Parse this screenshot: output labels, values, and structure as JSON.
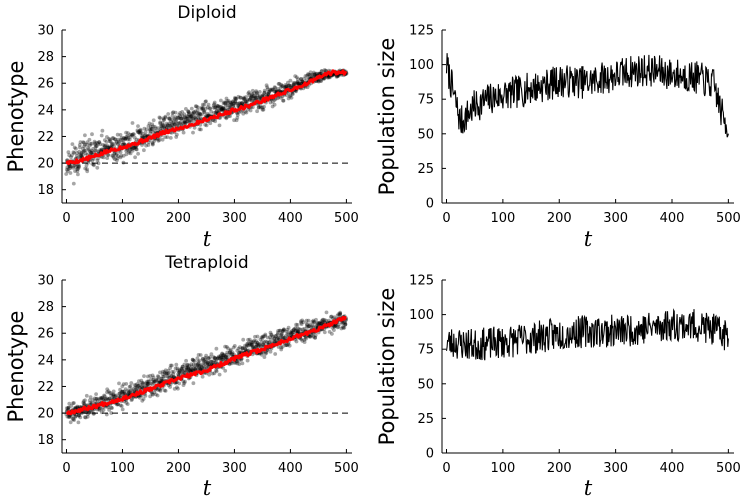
{
  "figure": {
    "background": "#ffffff"
  },
  "chart_data": [
    {
      "id": "diploid-phenotype",
      "type": "scatter",
      "title": "Diploid",
      "xlabel": "t",
      "ylabel": "Phenotype",
      "xlim": [
        -8,
        510
      ],
      "ylim": [
        17,
        30
      ],
      "xticks": [
        0,
        100,
        200,
        300,
        400,
        500
      ],
      "yticks": [
        18,
        20,
        22,
        24,
        26,
        28,
        30
      ],
      "grid": false,
      "points_color": "#000000",
      "points_opacity": 0.35,
      "reference_line": {
        "y": 20,
        "style": "dashed",
        "color": "#000000"
      },
      "scatter_spread": [
        {
          "t": 0,
          "low": 18.3,
          "high": 21.7
        },
        {
          "t": 50,
          "low": 19.2,
          "high": 22.3
        },
        {
          "t": 100,
          "low": 20.0,
          "high": 22.6
        },
        {
          "t": 200,
          "low": 21.8,
          "high": 24.3
        },
        {
          "t": 300,
          "low": 23.2,
          "high": 25.2
        },
        {
          "t": 400,
          "low": 24.8,
          "high": 26.4
        },
        {
          "t": 460,
          "low": 26.2,
          "high": 27.1
        },
        {
          "t": 500,
          "low": 26.6,
          "high": 27.0
        }
      ],
      "series": [
        {
          "color": "#ff0000",
          "x": [
            0,
            25,
            50,
            75,
            100,
            125,
            150,
            175,
            200,
            225,
            250,
            275,
            300,
            325,
            350,
            375,
            400,
            425,
            450,
            465,
            475,
            500
          ],
          "y": [
            20.0,
            20.2,
            20.5,
            20.9,
            21.2,
            21.5,
            21.9,
            22.3,
            22.6,
            22.9,
            23.3,
            23.6,
            24.0,
            24.3,
            24.7,
            25.1,
            25.5,
            25.9,
            26.4,
            26.7,
            26.8,
            26.8
          ]
        }
      ]
    },
    {
      "id": "diploid-population",
      "type": "line",
      "title": "",
      "xlabel": "t",
      "ylabel": "Population size",
      "xlim": [
        -8,
        510
      ],
      "ylim": [
        0,
        125
      ],
      "xticks": [
        0,
        100,
        200,
        300,
        400,
        500
      ],
      "yticks": [
        0,
        25,
        50,
        75,
        100,
        125
      ],
      "grid": false,
      "series": [
        {
          "color": "#000000",
          "x": [
            0,
            25,
            50,
            75,
            100,
            125,
            150,
            175,
            200,
            225,
            250,
            275,
            300,
            325,
            350,
            375,
            400,
            425,
            450,
            475,
            490,
            500
          ],
          "y": [
            100,
            58,
            70,
            75,
            78,
            80,
            83,
            85,
            88,
            88,
            87,
            90,
            92,
            95,
            96,
            95,
            93,
            92,
            90,
            85,
            62,
            55
          ],
          "noise_amplitude": 12,
          "noise_seed": 7
        }
      ]
    },
    {
      "id": "tetraploid-phenotype",
      "type": "scatter",
      "title": "Tetraploid",
      "xlabel": "t",
      "ylabel": "Phenotype",
      "xlim": [
        -8,
        510
      ],
      "ylim": [
        17,
        30
      ],
      "xticks": [
        0,
        100,
        200,
        300,
        400,
        500
      ],
      "yticks": [
        18,
        20,
        22,
        24,
        26,
        28,
        30
      ],
      "grid": false,
      "points_color": "#000000",
      "points_opacity": 0.35,
      "reference_line": {
        "y": 20,
        "style": "dashed",
        "color": "#000000"
      },
      "scatter_spread": [
        {
          "t": 0,
          "low": 19.0,
          "high": 21.0
        },
        {
          "t": 100,
          "low": 20.2,
          "high": 22.3
        },
        {
          "t": 200,
          "low": 21.8,
          "high": 24.0
        },
        {
          "t": 300,
          "low": 23.3,
          "high": 25.4
        },
        {
          "t": 400,
          "low": 24.8,
          "high": 26.8
        },
        {
          "t": 500,
          "low": 26.3,
          "high": 27.9
        }
      ],
      "series": [
        {
          "color": "#ff0000",
          "x": [
            0,
            50,
            100,
            150,
            200,
            250,
            300,
            350,
            400,
            450,
            500
          ],
          "y": [
            20.0,
            20.5,
            21.1,
            21.8,
            22.6,
            23.2,
            24.1,
            24.8,
            25.6,
            26.3,
            27.2
          ]
        }
      ]
    },
    {
      "id": "tetraploid-population",
      "type": "line",
      "title": "",
      "xlabel": "t",
      "ylabel": "Population size",
      "xlim": [
        -8,
        510
      ],
      "ylim": [
        0,
        125
      ],
      "xticks": [
        0,
        100,
        200,
        300,
        400,
        500
      ],
      "yticks": [
        0,
        25,
        50,
        75,
        100,
        125
      ],
      "grid": false,
      "series": [
        {
          "color": "#000000",
          "x": [
            0,
            50,
            100,
            150,
            200,
            250,
            300,
            350,
            400,
            450,
            500
          ],
          "y": [
            80,
            78,
            80,
            83,
            86,
            88,
            88,
            90,
            93,
            92,
            85
          ],
          "noise_amplitude": 12,
          "noise_seed": 23
        }
      ]
    }
  ]
}
